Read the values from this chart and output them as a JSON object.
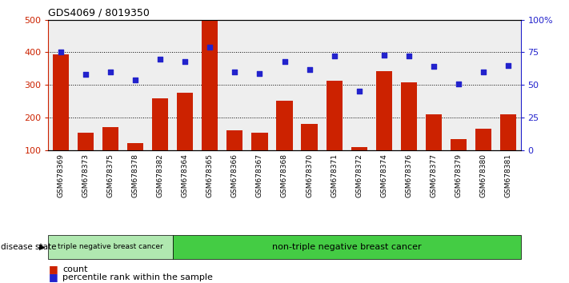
{
  "title": "GDS4069 / 8019350",
  "samples": [
    "GSM678369",
    "GSM678373",
    "GSM678375",
    "GSM678378",
    "GSM678382",
    "GSM678364",
    "GSM678365",
    "GSM678366",
    "GSM678367",
    "GSM678368",
    "GSM678370",
    "GSM678371",
    "GSM678372",
    "GSM678374",
    "GSM678376",
    "GSM678377",
    "GSM678379",
    "GSM678380",
    "GSM678381"
  ],
  "counts": [
    395,
    152,
    170,
    122,
    258,
    275,
    497,
    160,
    152,
    252,
    180,
    313,
    108,
    342,
    308,
    210,
    133,
    165,
    210
  ],
  "percentiles": [
    75,
    58,
    60,
    54,
    70,
    68,
    79,
    60,
    59,
    68,
    62,
    72,
    45,
    73,
    72,
    64,
    51,
    60,
    65
  ],
  "triple_neg_count": 5,
  "ylim_left": [
    100,
    500
  ],
  "ylim_right": [
    0,
    100
  ],
  "yticks_left": [
    100,
    200,
    300,
    400,
    500
  ],
  "yticks_right": [
    0,
    25,
    50,
    75,
    100
  ],
  "bar_color": "#cc2200",
  "dot_color": "#2222cc",
  "triple_neg_facecolor": "#b0e8b0",
  "non_triple_neg_facecolor": "#44cc44",
  "legend_count_label": "count",
  "legend_pct_label": "percentile rank within the sample",
  "disease_state_label": "disease state",
  "triple_neg_label": "triple negative breast cancer",
  "non_triple_neg_label": "non-triple negative breast cancer",
  "col_bg_color": "#cccccc"
}
